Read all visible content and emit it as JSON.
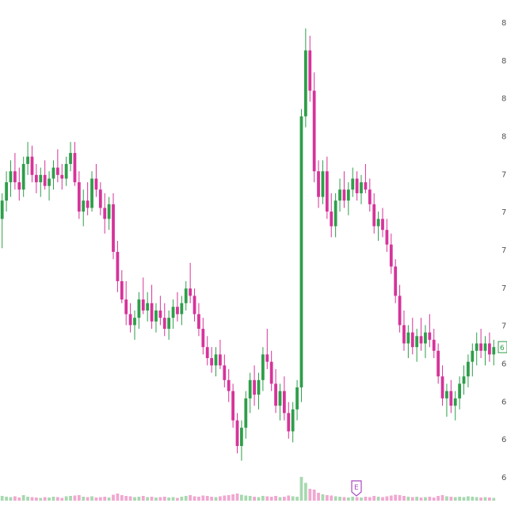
{
  "chart_data": {
    "type": "candlestick",
    "title": "",
    "xlabel": "",
    "ylabel": "",
    "ylim": [
      5.9,
      8.4
    ],
    "y_axis_side": "right",
    "y_tick_labels": [
      "8",
      "8",
      "8",
      "8",
      "7",
      "7",
      "7",
      "7",
      "7",
      "6",
      "6",
      "6",
      "6"
    ],
    "grid": false,
    "legend": "none",
    "last_price_label": "6",
    "event_marker_label": "E",
    "colors": {
      "up": "#2e9e4a",
      "down": "#d6339a",
      "volume_up": "#a8d8b0",
      "volume_down": "#f0a8d0",
      "axis_text": "#555555",
      "event_marker": "#a64bbf",
      "price_tag": "#2e9e4a"
    },
    "series": [
      {
        "candles": [
          [
            7.3,
            7.44,
            7.14,
            7.4,
            12
          ],
          [
            7.4,
            7.56,
            7.34,
            7.5,
            10
          ],
          [
            7.5,
            7.62,
            7.42,
            7.56,
            9
          ],
          [
            7.56,
            7.66,
            7.46,
            7.5,
            11
          ],
          [
            7.5,
            7.58,
            7.4,
            7.46,
            8
          ],
          [
            7.46,
            7.64,
            7.42,
            7.6,
            14
          ],
          [
            7.6,
            7.72,
            7.54,
            7.64,
            10
          ],
          [
            7.64,
            7.7,
            7.5,
            7.54,
            9
          ],
          [
            7.54,
            7.6,
            7.44,
            7.5,
            8
          ],
          [
            7.5,
            7.58,
            7.42,
            7.54,
            7
          ],
          [
            7.54,
            7.62,
            7.46,
            7.48,
            9
          ],
          [
            7.48,
            7.56,
            7.4,
            7.52,
            8
          ],
          [
            7.52,
            7.62,
            7.46,
            7.58,
            10
          ],
          [
            7.58,
            7.68,
            7.5,
            7.54,
            9
          ],
          [
            7.54,
            7.6,
            7.46,
            7.52,
            7
          ],
          [
            7.52,
            7.64,
            7.48,
            7.6,
            11
          ],
          [
            7.6,
            7.72,
            7.56,
            7.66,
            12
          ],
          [
            7.66,
            7.72,
            7.48,
            7.5,
            13
          ],
          [
            7.5,
            7.56,
            7.3,
            7.34,
            14
          ],
          [
            7.34,
            7.46,
            7.26,
            7.4,
            10
          ],
          [
            7.4,
            7.5,
            7.32,
            7.36,
            9
          ],
          [
            7.36,
            7.56,
            7.34,
            7.52,
            11
          ],
          [
            7.52,
            7.6,
            7.42,
            7.46,
            8
          ],
          [
            7.46,
            7.5,
            7.32,
            7.36,
            9
          ],
          [
            7.36,
            7.44,
            7.22,
            7.3,
            10
          ],
          [
            7.3,
            7.42,
            7.24,
            7.38,
            8
          ],
          [
            7.38,
            7.44,
            7.08,
            7.12,
            15
          ],
          [
            7.12,
            7.18,
            6.9,
            6.96,
            18
          ],
          [
            6.96,
            7.02,
            6.84,
            6.86,
            14
          ],
          [
            6.86,
            6.96,
            6.72,
            6.78,
            12
          ],
          [
            6.78,
            6.84,
            6.68,
            6.72,
            11
          ],
          [
            6.72,
            6.8,
            6.64,
            6.76,
            9
          ],
          [
            6.76,
            6.9,
            6.7,
            6.86,
            10
          ],
          [
            6.86,
            6.98,
            6.78,
            6.8,
            12
          ],
          [
            6.8,
            6.9,
            6.74,
            6.84,
            9
          ],
          [
            6.84,
            6.94,
            6.7,
            6.74,
            10
          ],
          [
            6.74,
            6.84,
            6.68,
            6.8,
            8
          ],
          [
            6.8,
            6.88,
            6.72,
            6.76,
            9
          ],
          [
            6.76,
            6.84,
            6.66,
            6.7,
            10
          ],
          [
            6.7,
            6.8,
            6.64,
            6.76,
            8
          ],
          [
            6.76,
            6.86,
            6.7,
            6.82,
            9
          ],
          [
            6.82,
            6.9,
            6.74,
            6.78,
            7
          ],
          [
            6.78,
            6.88,
            6.72,
            6.84,
            10
          ],
          [
            6.84,
            6.96,
            6.8,
            6.92,
            12
          ],
          [
            6.92,
            7.06,
            6.84,
            6.88,
            14
          ],
          [
            6.88,
            6.92,
            6.74,
            6.78,
            11
          ],
          [
            6.78,
            6.84,
            6.66,
            6.7,
            10
          ],
          [
            6.7,
            6.76,
            6.56,
            6.6,
            13
          ],
          [
            6.6,
            6.66,
            6.5,
            6.54,
            12
          ],
          [
            6.54,
            6.6,
            6.46,
            6.5,
            10
          ],
          [
            6.5,
            6.6,
            6.44,
            6.56,
            9
          ],
          [
            6.56,
            6.64,
            6.48,
            6.5,
            11
          ],
          [
            6.5,
            6.56,
            6.38,
            6.42,
            13
          ],
          [
            6.42,
            6.48,
            6.3,
            6.36,
            14
          ],
          [
            6.36,
            6.4,
            6.16,
            6.2,
            16
          ],
          [
            6.2,
            6.24,
            6.02,
            6.06,
            18
          ],
          [
            6.06,
            6.2,
            5.98,
            6.16,
            15
          ],
          [
            6.16,
            6.36,
            6.1,
            6.32,
            13
          ],
          [
            6.32,
            6.46,
            6.24,
            6.42,
            12
          ],
          [
            6.42,
            6.5,
            6.28,
            6.34,
            10
          ],
          [
            6.34,
            6.46,
            6.26,
            6.42,
            9
          ],
          [
            6.42,
            6.6,
            6.36,
            6.56,
            12
          ],
          [
            6.56,
            6.7,
            6.48,
            6.52,
            11
          ],
          [
            6.52,
            6.58,
            6.36,
            6.4,
            10
          ],
          [
            6.4,
            6.48,
            6.24,
            6.28,
            12
          ],
          [
            6.28,
            6.4,
            6.2,
            6.36,
            9
          ],
          [
            6.36,
            6.44,
            6.2,
            6.24,
            10
          ],
          [
            6.24,
            6.3,
            6.1,
            6.14,
            13
          ],
          [
            6.14,
            6.3,
            6.08,
            6.26,
            11
          ],
          [
            6.26,
            6.42,
            6.2,
            6.38,
            10
          ],
          [
            6.38,
            7.9,
            6.3,
            7.86,
            60
          ],
          [
            7.86,
            8.34,
            7.8,
            8.22,
            45
          ],
          [
            8.22,
            8.3,
            7.94,
            8.0,
            30
          ],
          [
            8.0,
            8.1,
            7.5,
            7.56,
            28
          ],
          [
            7.56,
            7.62,
            7.36,
            7.42,
            20
          ],
          [
            7.42,
            7.62,
            7.38,
            7.56,
            16
          ],
          [
            7.56,
            7.64,
            7.3,
            7.34,
            14
          ],
          [
            7.34,
            7.44,
            7.2,
            7.26,
            13
          ],
          [
            7.26,
            7.44,
            7.2,
            7.4,
            11
          ],
          [
            7.4,
            7.52,
            7.34,
            7.46,
            10
          ],
          [
            7.46,
            7.56,
            7.36,
            7.4,
            9
          ],
          [
            7.4,
            7.5,
            7.32,
            7.46,
            8
          ],
          [
            7.46,
            7.58,
            7.42,
            7.52,
            10
          ],
          [
            7.52,
            7.56,
            7.4,
            7.44,
            9
          ],
          [
            7.44,
            7.54,
            7.38,
            7.5,
            8
          ],
          [
            7.5,
            7.6,
            7.44,
            7.46,
            10
          ],
          [
            7.46,
            7.52,
            7.34,
            7.38,
            9
          ],
          [
            7.38,
            7.44,
            7.22,
            7.26,
            12
          ],
          [
            7.26,
            7.34,
            7.18,
            7.3,
            10
          ],
          [
            7.3,
            7.36,
            7.2,
            7.24,
            9
          ],
          [
            7.24,
            7.3,
            7.12,
            7.16,
            11
          ],
          [
            7.16,
            7.22,
            7.0,
            7.04,
            13
          ],
          [
            7.04,
            7.08,
            6.84,
            6.88,
            15
          ],
          [
            6.88,
            6.94,
            6.68,
            6.72,
            14
          ],
          [
            6.72,
            6.8,
            6.58,
            6.62,
            12
          ],
          [
            6.62,
            6.72,
            6.54,
            6.68,
            10
          ],
          [
            6.68,
            6.76,
            6.56,
            6.6,
            9
          ],
          [
            6.6,
            6.7,
            6.52,
            6.66,
            10
          ],
          [
            6.66,
            6.76,
            6.58,
            6.62,
            8
          ],
          [
            6.62,
            6.72,
            6.54,
            6.68,
            9
          ],
          [
            6.68,
            6.78,
            6.6,
            6.64,
            10
          ],
          [
            6.64,
            6.7,
            6.54,
            6.58,
            8
          ],
          [
            6.58,
            6.62,
            6.4,
            6.44,
            12
          ],
          [
            6.44,
            6.5,
            6.28,
            6.32,
            14
          ],
          [
            6.32,
            6.4,
            6.22,
            6.36,
            11
          ],
          [
            6.36,
            6.42,
            6.24,
            6.28,
            10
          ],
          [
            6.28,
            6.36,
            6.2,
            6.32,
            9
          ],
          [
            6.32,
            6.44,
            6.26,
            6.4,
            10
          ],
          [
            6.4,
            6.5,
            6.34,
            6.44,
            9
          ],
          [
            6.44,
            6.56,
            6.38,
            6.52,
            11
          ],
          [
            6.52,
            6.62,
            6.44,
            6.58,
            10
          ],
          [
            6.58,
            6.68,
            6.5,
            6.62,
            9
          ],
          [
            6.62,
            6.7,
            6.54,
            6.58,
            8
          ],
          [
            6.58,
            6.66,
            6.5,
            6.62,
            9
          ],
          [
            6.62,
            6.68,
            6.52,
            6.56,
            8
          ],
          [
            6.56,
            6.64,
            6.5,
            6.6,
            7
          ]
        ]
      }
    ]
  }
}
